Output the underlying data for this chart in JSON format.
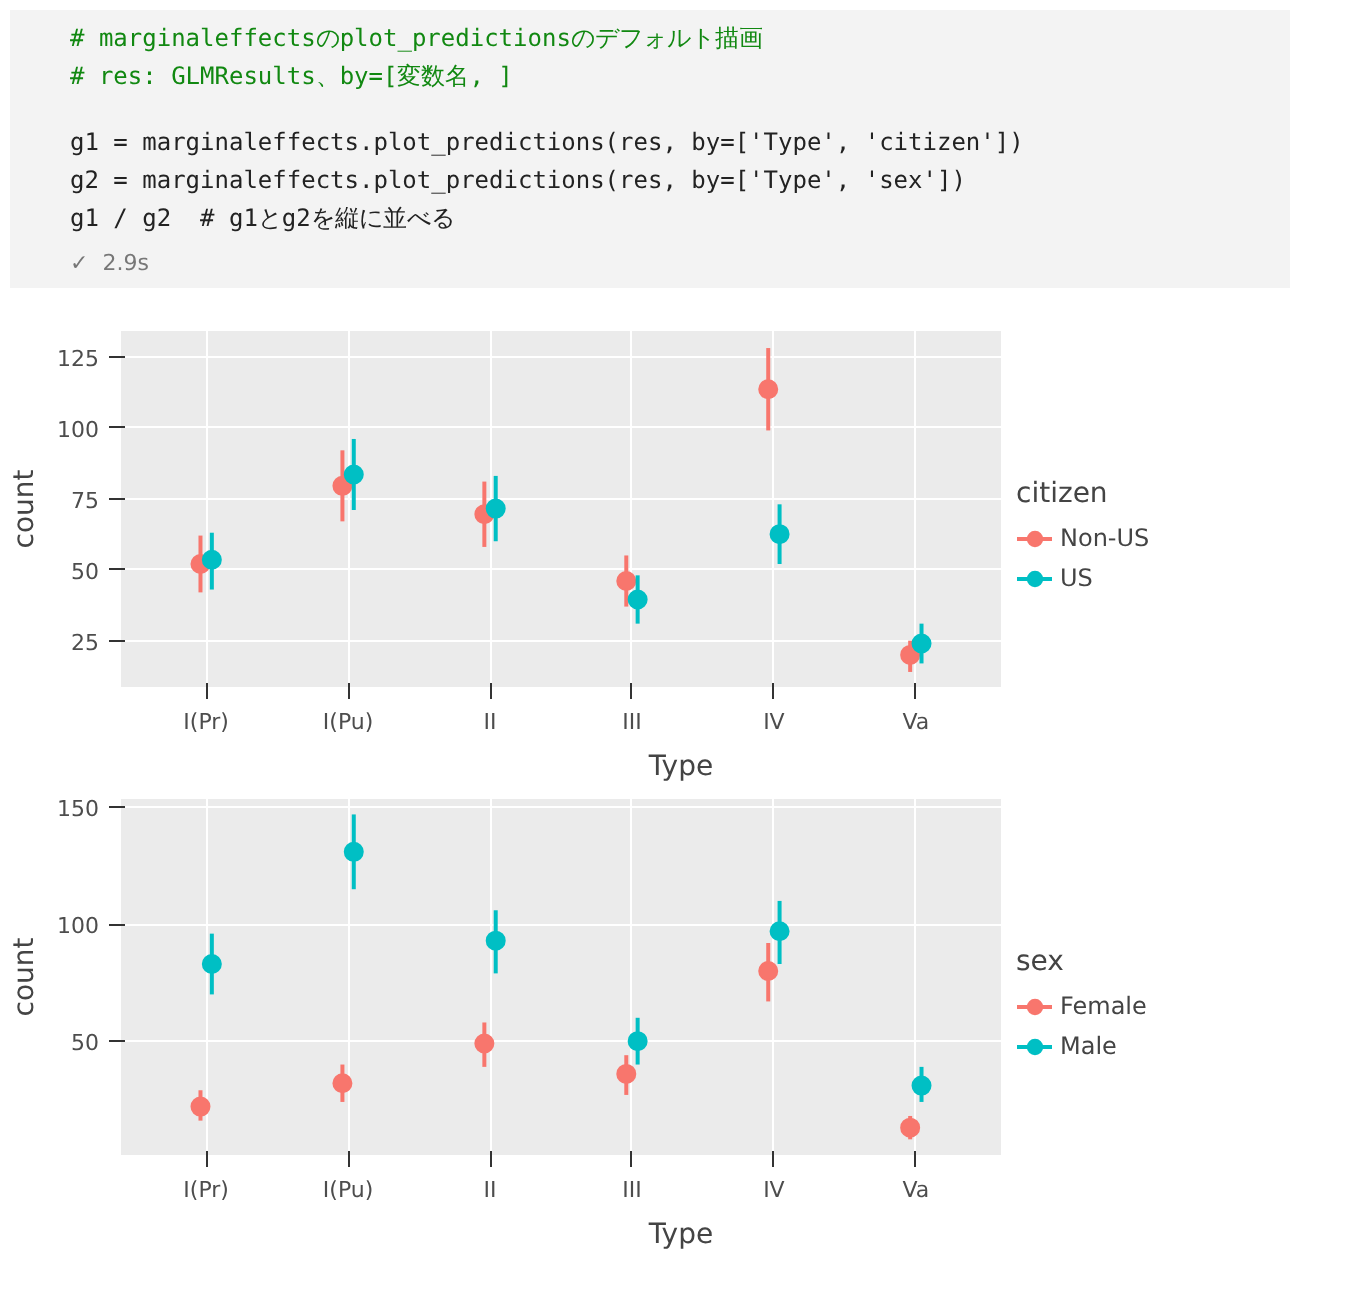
{
  "chart_data": [
    {
      "type": "scatter",
      "xlabel": "Type",
      "ylabel": "count",
      "legend_title": "citizen",
      "legend": "right",
      "grid": true,
      "marker": "circle",
      "annotations": [
        "# marginaleffectsのplot_predictionsのデフォルト描画",
        "# res: GLMResults、by=[変数名, ]",
        "g1 = marginaleffects.plot_predictions(res, by=['Type', 'citizen'])",
        "g2 = marginaleffects.plot_predictions(res, by=['Type', 'sex'])",
        "g1 / g2  # g1とg2を縦に並べる",
        "✓  2.9s"
      ],
      "categories": [
        "I(Pr)",
        "I(Pu)",
        "II",
        "III",
        "IV",
        "Va"
      ],
      "ylim": [
        8.7,
        134
      ],
      "yticks": [
        25,
        50,
        75,
        100,
        125
      ],
      "series": [
        {
          "name": "Non-US",
          "color": "#f8766d",
          "values": [
            52,
            79.5,
            69.5,
            46,
            113.5,
            20
          ],
          "errors": [
            [
              42,
              62
            ],
            [
              67,
              92
            ],
            [
              58,
              81
            ],
            [
              37,
              55
            ],
            [
              99,
              128
            ],
            [
              14,
              25
            ]
          ]
        },
        {
          "name": "US",
          "color": "#00bfc4",
          "values": [
            53.5,
            83.5,
            71.5,
            39.5,
            62.5,
            24
          ],
          "errors": [
            [
              43,
              63
            ],
            [
              71,
              96
            ],
            [
              60,
              83
            ],
            [
              31,
              48
            ],
            [
              52,
              73
            ],
            [
              17,
              31
            ]
          ]
        }
      ]
    },
    {
      "type": "scatter",
      "xlabel": "Type",
      "ylabel": "count",
      "legend_title": "sex",
      "legend": "right",
      "grid": true,
      "marker": "circle",
      "categories": [
        "I(Pr)",
        "I(Pu)",
        "II",
        "III",
        "IV",
        "Va"
      ],
      "ylim": [
        1.3,
        153.6
      ],
      "yticks": [
        50,
        100,
        150
      ],
      "series": [
        {
          "name": "Female",
          "color": "#f8766d",
          "values": [
            22,
            32,
            49,
            36,
            80,
            13
          ],
          "errors": [
            [
              16,
              29
            ],
            [
              24,
              40
            ],
            [
              39,
              58
            ],
            [
              27,
              44
            ],
            [
              67,
              92
            ],
            [
              8,
              18
            ]
          ]
        },
        {
          "name": "Male",
          "color": "#00bfc4",
          "values": [
            83,
            131,
            93,
            50,
            97,
            31
          ],
          "errors": [
            [
              70,
              96
            ],
            [
              115,
              147
            ],
            [
              79,
              106
            ],
            [
              40,
              60
            ],
            [
              83,
              110
            ],
            [
              24,
              39
            ]
          ]
        }
      ]
    }
  ]
}
